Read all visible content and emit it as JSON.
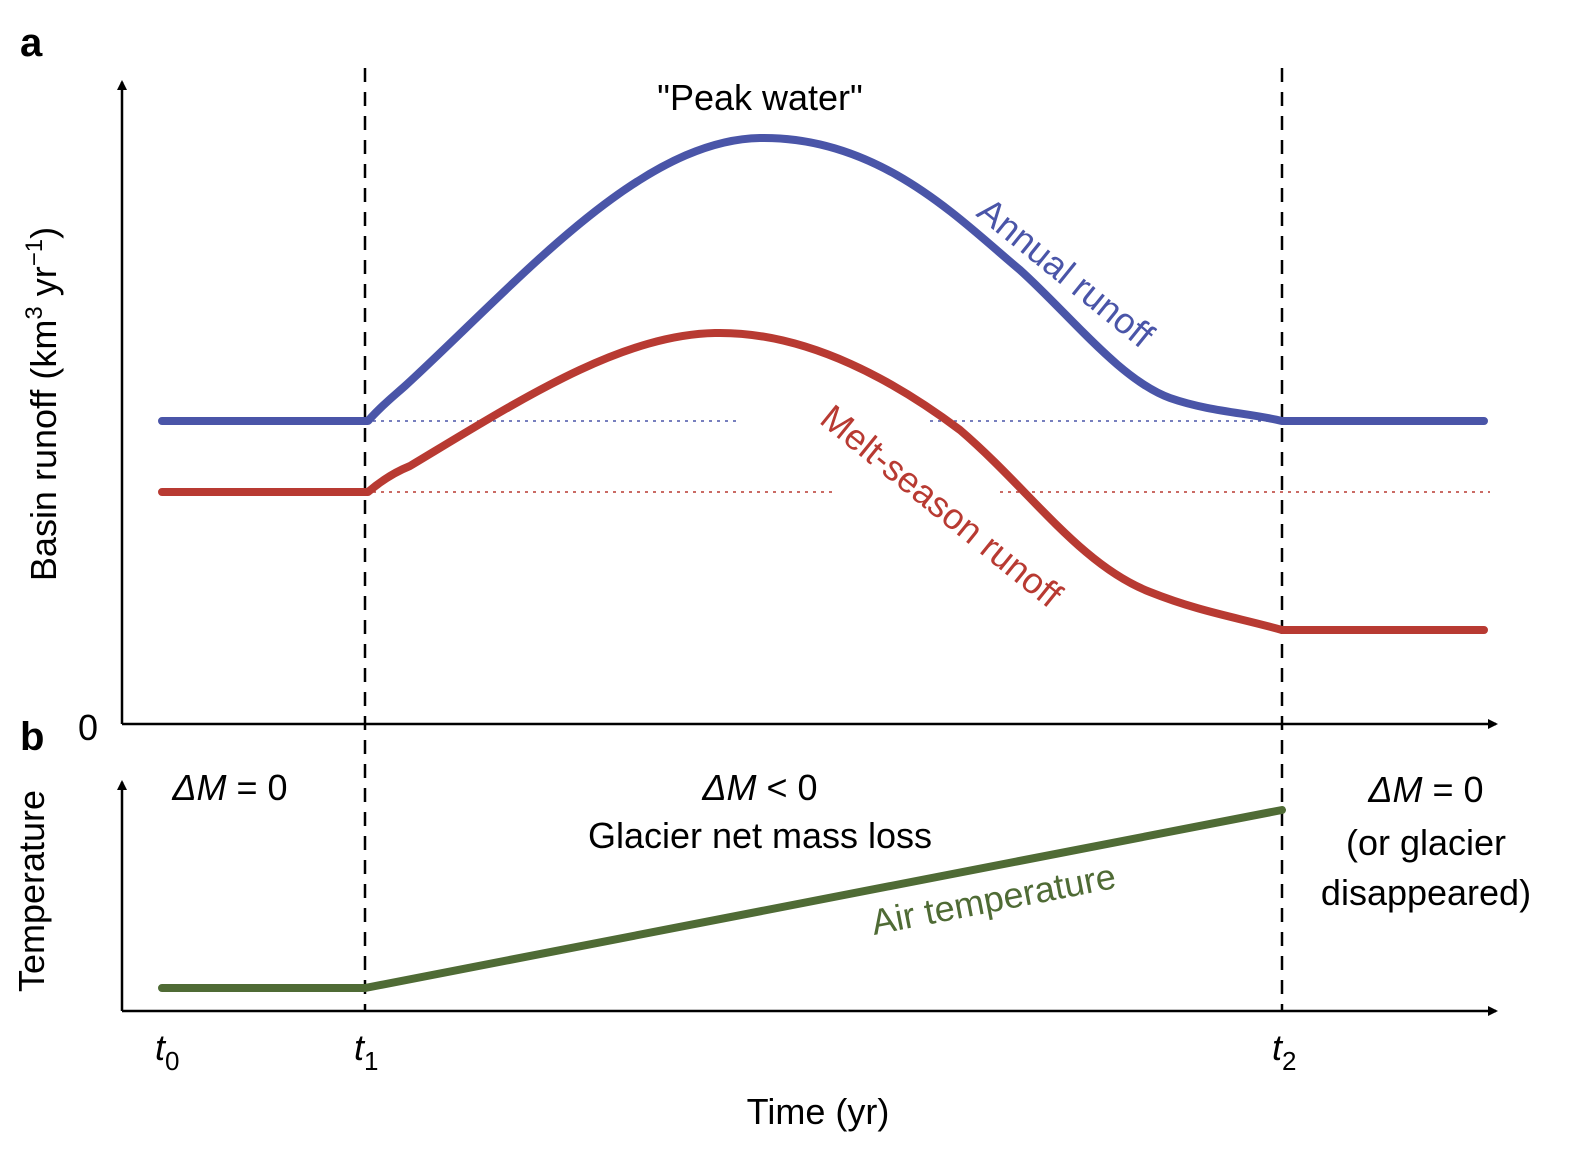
{
  "panel_a": {
    "letter": "a",
    "y_axis_title": "Basin runoff (km",
    "y_axis_sup1": "3",
    "y_axis_mid": " yr",
    "y_axis_sup2": "−1",
    "y_axis_end": ")",
    "zero_label": "0",
    "peak_label": "\"Peak water\"",
    "annual_label": "Annual runoff",
    "melt_label": "Melt-season runoff"
  },
  "panel_b": {
    "letter": "b",
    "y_axis_title": "Temperature",
    "air_label": "Air temperature",
    "phase1_delta": "ΔM",
    "phase1_rel": " = 0",
    "phase2_delta": "ΔM",
    "phase2_rel": " < 0",
    "phase2_desc": "Glacier net mass loss",
    "phase3_delta": "ΔM",
    "phase3_rel": " = 0",
    "phase3_line2": "(or glacier",
    "phase3_line3": "disappeared)"
  },
  "x_axis": {
    "title": "Time (yr)",
    "ticks": [
      {
        "base": "t",
        "sub": "0"
      },
      {
        "base": "t",
        "sub": "1"
      },
      {
        "base": "t",
        "sub": "2"
      }
    ]
  },
  "colors": {
    "annual": "#4a55a8",
    "melt": "#b83a32",
    "air": "#4f6b35",
    "axis": "#000000"
  }
}
